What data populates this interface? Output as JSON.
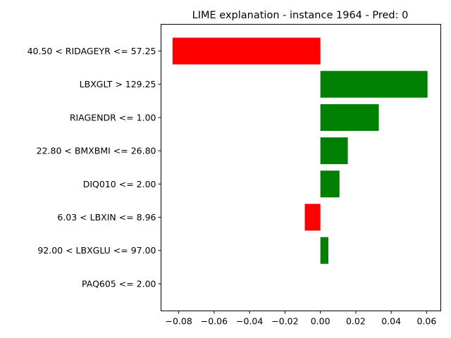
{
  "chart_data": {
    "type": "bar",
    "orientation": "horizontal",
    "title": "LIME explanation - instance 1964 - Pred: 0",
    "xlabel": "",
    "ylabel": "",
    "xlim": [
      -0.09,
      0.068
    ],
    "xticks": [
      -0.08,
      -0.06,
      -0.04,
      -0.02,
      0.0,
      0.02,
      0.04,
      0.06
    ],
    "xtick_labels": [
      "−0.08",
      "−0.06",
      "−0.04",
      "−0.02",
      "0.00",
      "0.02",
      "0.04",
      "0.06"
    ],
    "grid": false,
    "legend": "none",
    "categories": [
      "40.50 < RIDAGEYR <= 57.25",
      "LBXGLT > 129.25",
      "RIAGENDR <= 1.00",
      "22.80 < BMXBMI <= 26.80",
      "DIQ010 <= 2.00",
      "6.03 < LBXIN <= 8.96",
      "92.00 < LBXGLU <= 97.00",
      "PAQ605 <= 2.00"
    ],
    "values": [
      -0.0835,
      0.0605,
      0.033,
      0.0155,
      0.0108,
      -0.0088,
      0.0045,
      0.0
    ],
    "colors": {
      "positive": "#008000",
      "negative": "#ff0000"
    }
  }
}
